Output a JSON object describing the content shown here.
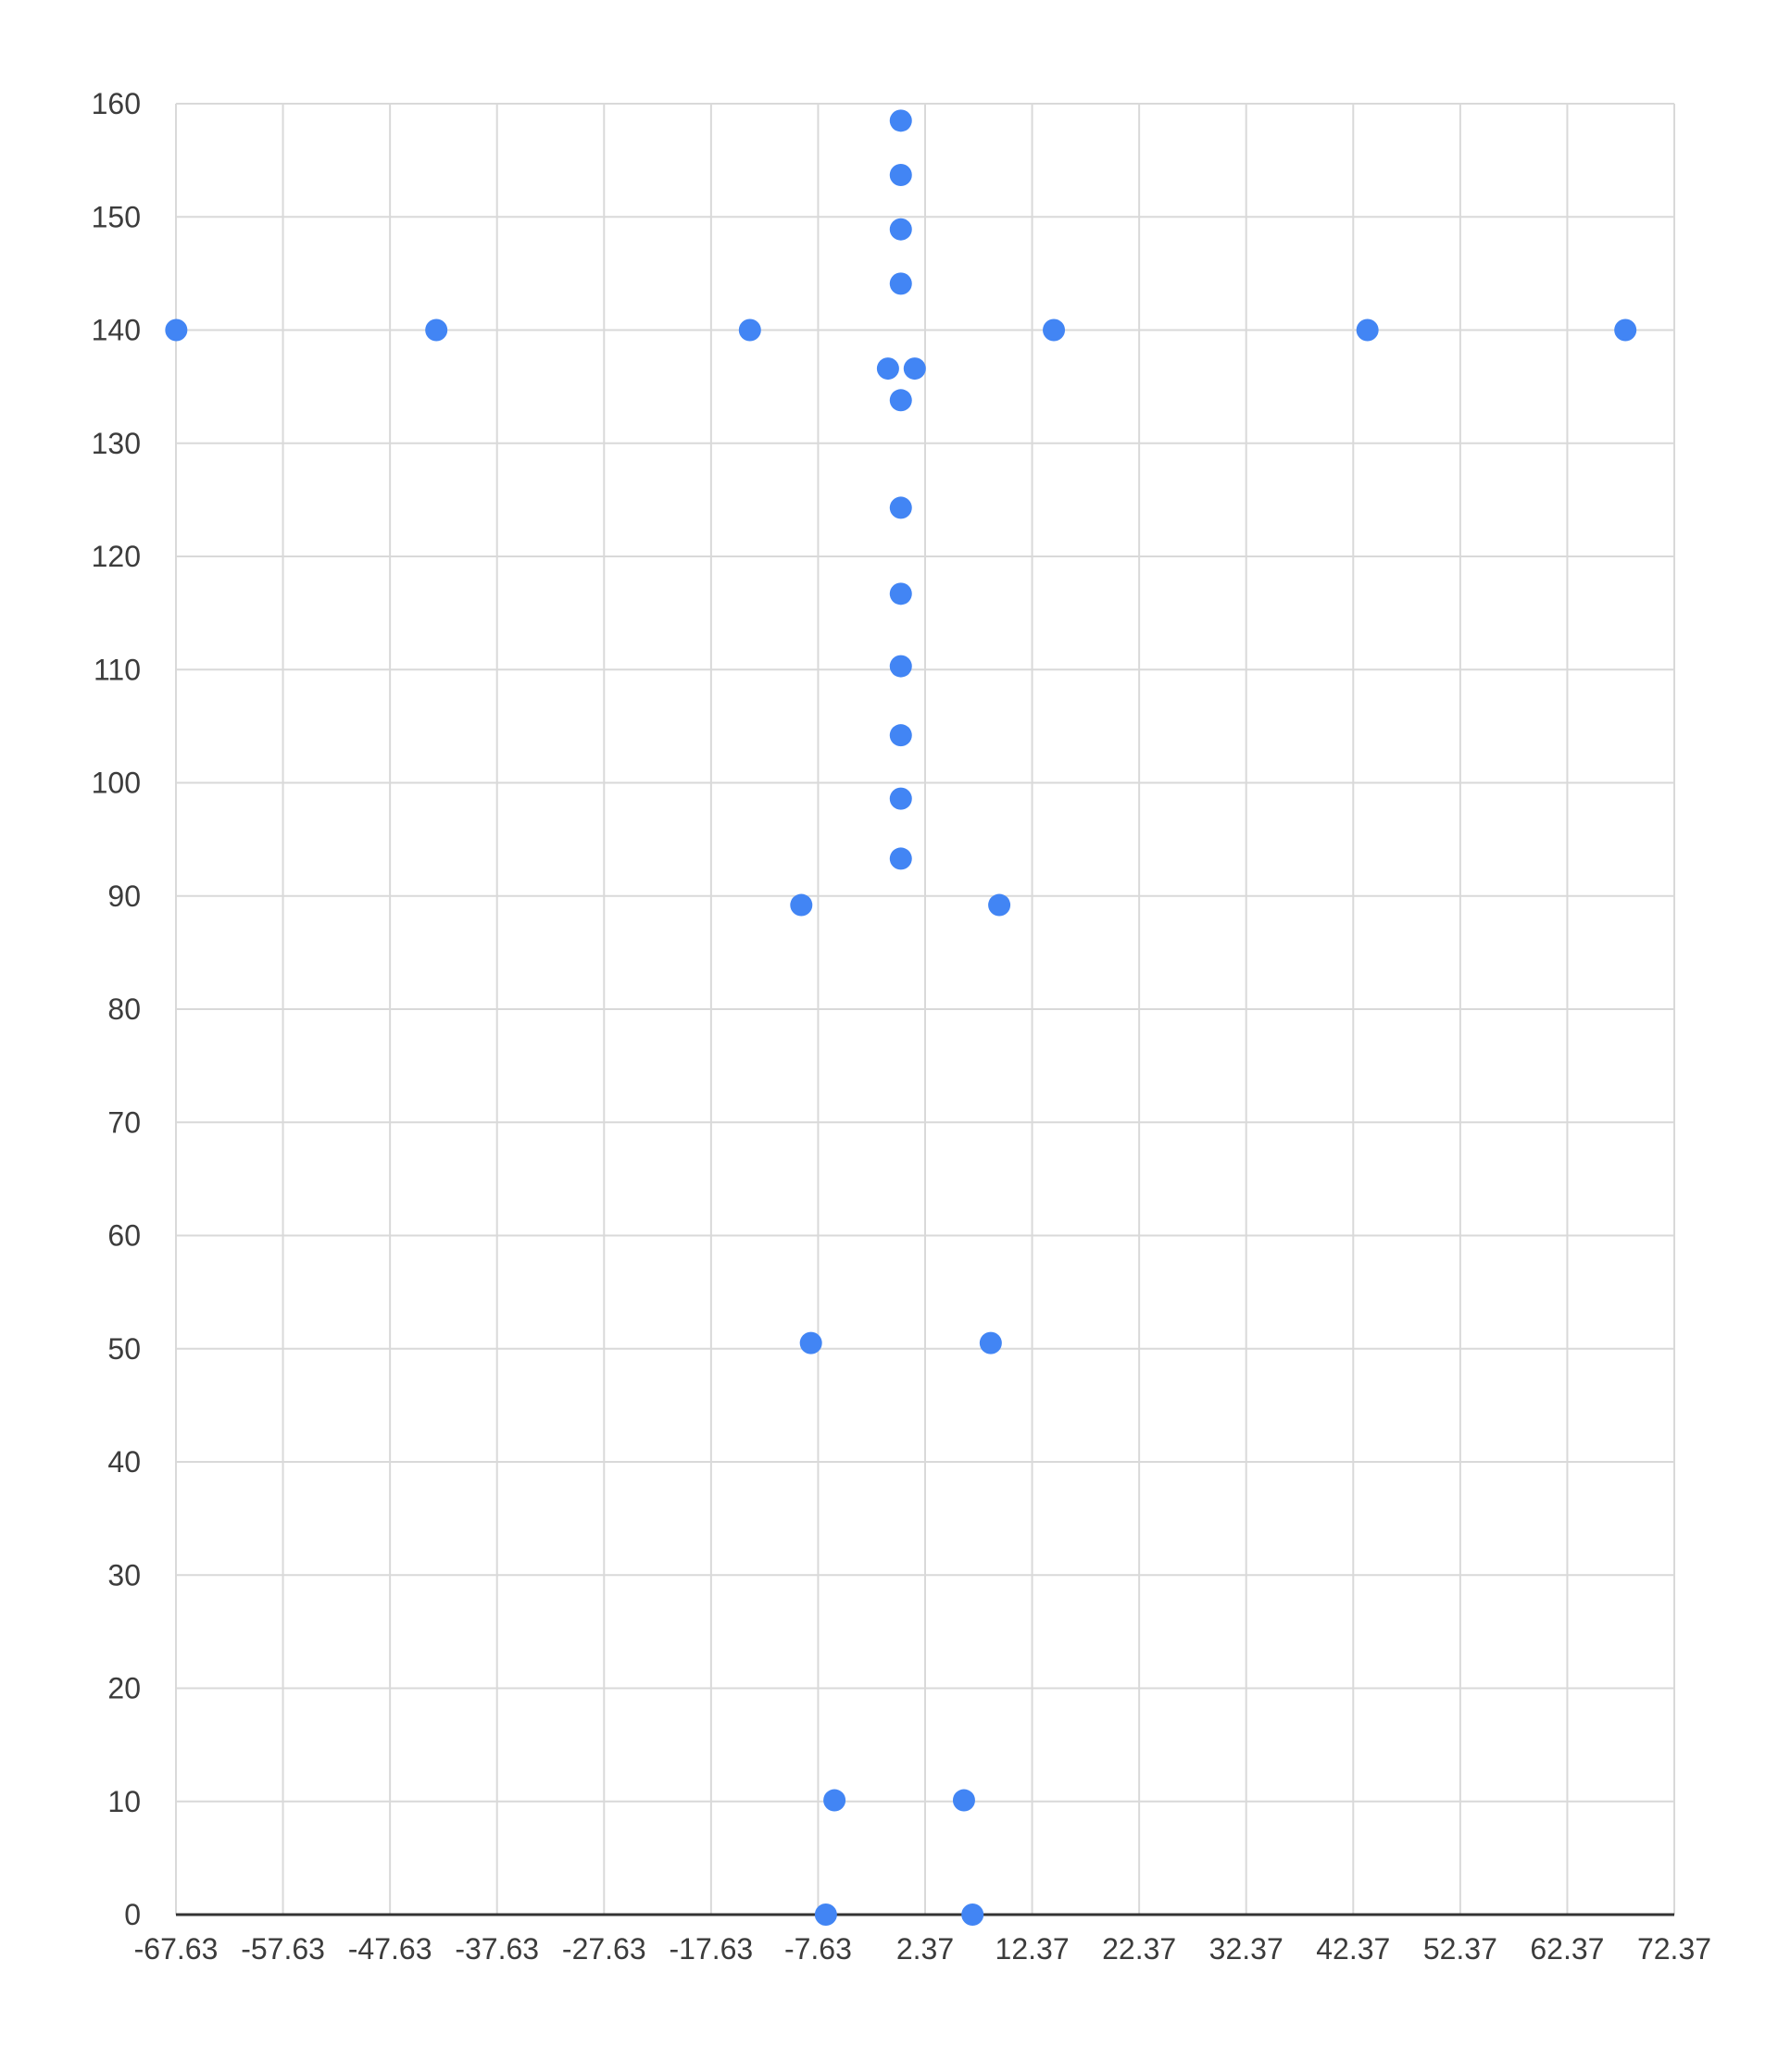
{
  "chart_data": {
    "type": "scatter",
    "title": "",
    "xlabel": "",
    "ylabel": "",
    "xlim": [
      -67.63,
      72.37
    ],
    "ylim": [
      0,
      160
    ],
    "x_ticks": [
      -67.63,
      -57.63,
      -47.63,
      -37.63,
      -27.63,
      -17.63,
      -7.63,
      2.37,
      12.37,
      22.37,
      32.37,
      42.37,
      52.37,
      62.37,
      72.37
    ],
    "x_tick_labels": [
      "-67.63",
      "-57.63",
      "-47.63",
      "-37.63",
      "-27.63",
      "-17.63",
      "-7.63",
      "2.37",
      "12.37",
      "22.37",
      "32.37",
      "42.37",
      "52.37",
      "62.37",
      "72.37"
    ],
    "y_ticks": [
      0,
      10,
      20,
      30,
      40,
      50,
      60,
      70,
      80,
      90,
      100,
      110,
      120,
      130,
      140,
      150,
      160
    ],
    "y_tick_labels": [
      "0",
      "10",
      "20",
      "30",
      "40",
      "50",
      "60",
      "70",
      "80",
      "90",
      "100",
      "110",
      "120",
      "130",
      "140",
      "150",
      "160"
    ],
    "grid": true,
    "legend": "none",
    "series": [
      {
        "color": "#4285f4",
        "points": [
          [
            -67.6,
            140.0
          ],
          [
            -43.3,
            140.0
          ],
          [
            -14.0,
            140.0
          ],
          [
            14.4,
            140.0
          ],
          [
            43.7,
            140.0
          ],
          [
            67.8,
            140.0
          ],
          [
            0.1,
            158.5
          ],
          [
            0.1,
            153.7
          ],
          [
            0.1,
            148.9
          ],
          [
            0.1,
            144.1
          ],
          [
            -1.1,
            136.6
          ],
          [
            1.4,
            136.6
          ],
          [
            0.1,
            133.8
          ],
          [
            0.1,
            124.3
          ],
          [
            0.1,
            116.7
          ],
          [
            0.1,
            110.3
          ],
          [
            0.1,
            104.2
          ],
          [
            0.1,
            98.6
          ],
          [
            0.1,
            93.3
          ],
          [
            -9.2,
            89.2
          ],
          [
            9.3,
            89.2
          ],
          [
            -8.3,
            50.5
          ],
          [
            8.5,
            50.5
          ],
          [
            -6.1,
            10.1
          ],
          [
            6.0,
            10.1
          ],
          [
            -6.9,
            0.0
          ],
          [
            6.8,
            0.0
          ]
        ]
      }
    ]
  }
}
